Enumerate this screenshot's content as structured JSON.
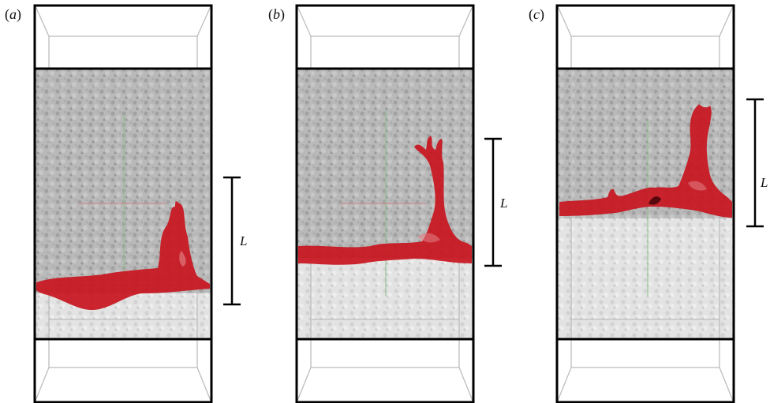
{
  "figure": {
    "panels": [
      {
        "label": "a",
        "scale_label": "L"
      },
      {
        "label": "b",
        "scale_label": "L"
      },
      {
        "label": "c",
        "scale_label": "L"
      }
    ],
    "colors": {
      "frame": "#000000",
      "inner_edges": "#bdbdbd",
      "porous_medium": "#9a9a9a",
      "fluid_interface": "#c8151e",
      "axis_red": "#d08080",
      "axis_green": "#8cc08c"
    }
  }
}
